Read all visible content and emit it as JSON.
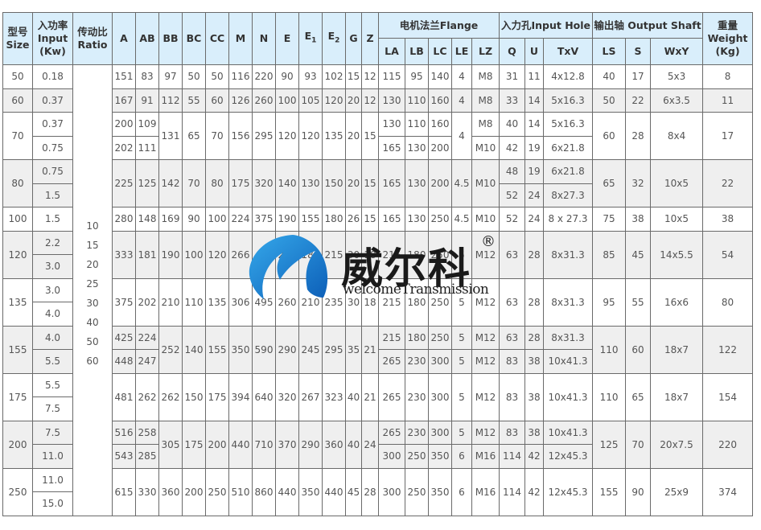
{
  "header": {
    "size": [
      "型号",
      "Size"
    ],
    "input": [
      "入功率",
      "Input",
      "(Kw)"
    ],
    "ratio": [
      "传动比",
      "Ratio"
    ],
    "dims": [
      "A",
      "AB",
      "BB",
      "BC",
      "CC",
      "M",
      "N",
      "E",
      "E",
      "E",
      "G",
      "Z"
    ],
    "e1_sub": "1",
    "e2_sub": "2",
    "flange": "电机法兰Flange",
    "flange_cols": [
      "LA",
      "LB",
      "LC",
      "LE",
      "LZ"
    ],
    "input_hole": "入力孔Input Hole",
    "input_hole_cols": [
      "Q",
      "U",
      "TxV"
    ],
    "output_shaft": "输出轴 Output Shaft",
    "output_shaft_cols": [
      "LS",
      "S",
      "WxY"
    ],
    "weight": [
      "重量",
      "Weight",
      "(Kg)"
    ]
  },
  "ratios": [
    "10",
    "15",
    "20",
    "25",
    "30",
    "40",
    "50",
    "60"
  ],
  "colors": {
    "header_bg": "#d9eefb",
    "stripe": "#efefef",
    "border": "#6a6a6a",
    "logo_blue": "#1572c8"
  },
  "groups": [
    {
      "size": "50",
      "inputs": [
        "0.18"
      ],
      "v": {
        "A": "151",
        "AB": "83",
        "BB": "97",
        "BC": "50",
        "CC": "50",
        "M": "116",
        "N": "220",
        "E": "90",
        "E1": "93",
        "E2": "102",
        "G": "15",
        "Z": "12",
        "LA": "115",
        "LB": "95",
        "LC": "140",
        "LE": "4",
        "LZ": "M8",
        "Q": "31",
        "U": "11",
        "TxV": "4x12.8",
        "LS": "40",
        "S": "17",
        "WxY": "5x3",
        "W": "8"
      }
    },
    {
      "size": "60",
      "inputs": [
        "0.37"
      ],
      "v": {
        "A": "167",
        "AB": "91",
        "BB": "112",
        "BC": "55",
        "CC": "60",
        "M": "126",
        "N": "260",
        "E": "100",
        "E1": "105",
        "E2": "120",
        "G": "20",
        "Z": "12",
        "LA": "130",
        "LB": "110",
        "LC": "160",
        "LE": "4",
        "LZ": "M8",
        "Q": "33",
        "U": "14",
        "TxV": "5x16.3",
        "LS": "50",
        "S": "22",
        "WxY": "6x3.5",
        "W": "11"
      }
    },
    {
      "size": "70",
      "inputs": [
        "0.37",
        "0.75"
      ],
      "v": {
        "A": [
          "200",
          "202"
        ],
        "AB": [
          "109",
          "111"
        ],
        "BB": "131",
        "BC": "65",
        "CC": "70",
        "M": "156",
        "N": "295",
        "E": "120",
        "E1": "120",
        "E2": "135",
        "G": "20",
        "Z": "15",
        "LA": [
          "130",
          "165"
        ],
        "LB": [
          "110",
          "130"
        ],
        "LC": [
          "160",
          "200"
        ],
        "LE": "4",
        "LZ": [
          "M8",
          "M10"
        ],
        "Q": [
          "40",
          "42"
        ],
        "U": [
          "14",
          "19"
        ],
        "TxV": [
          "5x16.3",
          "6x21.8"
        ],
        "LS": "60",
        "S": "28",
        "WxY": "8x4",
        "W": "17"
      }
    },
    {
      "size": "80",
      "inputs": [
        "0.75",
        "1.5"
      ],
      "v": {
        "A": "225",
        "AB": "125",
        "BB": "142",
        "BC": "70",
        "CC": "80",
        "M": "175",
        "N": "320",
        "E": "140",
        "E1": "130",
        "E2": "150",
        "G": "20",
        "Z": "15",
        "LA": "165",
        "LB": "130",
        "LC": "200",
        "LE": "4.5",
        "LZ": "M10",
        "Q": [
          "48",
          "52"
        ],
        "U": [
          "19",
          "24"
        ],
        "TxV": [
          "6x21.8",
          "8x27.3"
        ],
        "LS": "65",
        "S": "32",
        "WxY": "10x5",
        "W": "22"
      }
    },
    {
      "size": "100",
      "inputs": [
        "1.5"
      ],
      "v": {
        "A": "280",
        "AB": "148",
        "BB": "169",
        "BC": "90",
        "CC": "100",
        "M": "224",
        "N": "375",
        "E": "190",
        "E1": "155",
        "E2": "180",
        "G": "26",
        "Z": "15",
        "LA": "165",
        "LB": "130",
        "LC": "250",
        "LE": "4.5",
        "LZ": "M10",
        "Q": "52",
        "U": "24",
        "TxV": "8 x 27.3",
        "LS": "75",
        "S": "38",
        "WxY": "10x5",
        "W": "38"
      }
    },
    {
      "size": "120",
      "inputs": [
        "2.2",
        "3.0"
      ],
      "v": {
        "A": "333",
        "AB": "181",
        "BB": "190",
        "BC": "100",
        "CC": "120",
        "M": "266",
        "N": "450",
        "E": "220",
        "E1": "180",
        "E2": "215",
        "G": "30",
        "Z": "18",
        "LA": "215",
        "LB": "180",
        "LC": "250",
        "LE": "5",
        "LZ": "M12",
        "Q": "63",
        "U": "28",
        "TxV": "8x31.3",
        "LS": "85",
        "S": "45",
        "WxY": "14x5.5",
        "W": "54"
      }
    },
    {
      "size": "135",
      "inputs": [
        "3.0",
        "4.0"
      ],
      "v": {
        "A": "375",
        "AB": "202",
        "BB": "210",
        "BC": "110",
        "CC": "135",
        "M": "306",
        "N": "495",
        "E": "260",
        "E1": "210",
        "E2": "235",
        "G": "30",
        "Z": "18",
        "LA": "215",
        "LB": "180",
        "LC": "250",
        "LE": "5",
        "LZ": "M12",
        "Q": "63",
        "U": "28",
        "TxV": "8x31.3",
        "LS": "95",
        "S": "55",
        "WxY": "16x6",
        "W": "80"
      }
    },
    {
      "size": "155",
      "inputs": [
        "4.0",
        "5.5"
      ],
      "v": {
        "A": [
          "425",
          "448"
        ],
        "AB": [
          "224",
          "247"
        ],
        "BB": "252",
        "BC": "140",
        "CC": "155",
        "M": "350",
        "N": "590",
        "E": "290",
        "E1": "245",
        "E2": "295",
        "G": "35",
        "Z": "21",
        "LA": [
          "215",
          "265"
        ],
        "LB": [
          "180",
          "230"
        ],
        "LC": [
          "250",
          "300"
        ],
        "LE": [
          "5",
          "5"
        ],
        "LZ": [
          "M12",
          "M12"
        ],
        "Q": [
          "63",
          "83"
        ],
        "U": [
          "28",
          "38"
        ],
        "TxV": [
          "8x31.3",
          "10x41.3"
        ],
        "LS": "110",
        "S": "60",
        "WxY": "18x7",
        "W": "122"
      }
    },
    {
      "size": "175",
      "inputs": [
        "5.5",
        "7.5"
      ],
      "v": {
        "A": "481",
        "AB": "262",
        "BB": "262",
        "BC": "150",
        "CC": "175",
        "M": "394",
        "N": "640",
        "E": "320",
        "E1": "267",
        "E2": "323",
        "G": "40",
        "Z": "21",
        "LA": "265",
        "LB": "230",
        "LC": "300",
        "LE": "5",
        "LZ": "M12",
        "Q": "83",
        "U": "38",
        "TxV": "10x41.3",
        "LS": "110",
        "S": "65",
        "WxY": "18x7",
        "W": "154"
      }
    },
    {
      "size": "200",
      "inputs": [
        "7.5",
        "11.0"
      ],
      "v": {
        "A": [
          "516",
          "543"
        ],
        "AB": [
          "258",
          "285"
        ],
        "BB": "305",
        "BC": "175",
        "CC": "200",
        "M": "440",
        "N": "710",
        "E": "370",
        "E1": "290",
        "E2": "360",
        "G": "40",
        "Z": "24",
        "LA": [
          "265",
          "300"
        ],
        "LB": [
          "230",
          "250"
        ],
        "LC": [
          "300",
          "350"
        ],
        "LE": [
          "5",
          "6"
        ],
        "LZ": [
          "M12",
          "M16"
        ],
        "Q": [
          "83",
          "114"
        ],
        "U": [
          "38",
          "42"
        ],
        "TxV": [
          "10x41.3",
          "12x45.3"
        ],
        "LS": "125",
        "S": "70",
        "WxY": "20x7.5",
        "W": "220"
      }
    },
    {
      "size": "250",
      "inputs": [
        "11.0",
        "15.0"
      ],
      "v": {
        "A": "615",
        "AB": "330",
        "BB": "360",
        "BC": "200",
        "CC": "250",
        "M": "510",
        "N": "860",
        "E": "440",
        "E1": "350",
        "E2": "440",
        "G": "45",
        "Z": "28",
        "LA": "300",
        "LB": "250",
        "LC": "350",
        "LE": "6",
        "LZ": "M16",
        "Q": "114",
        "U": "42",
        "TxV": "12x45.3",
        "LS": "155",
        "S": "90",
        "WxY": "25x9",
        "W": "374"
      }
    }
  ],
  "watermark": {
    "brand_cn": "威尔科",
    "brand_en": "welcomeTransmission",
    "registered": "®"
  }
}
